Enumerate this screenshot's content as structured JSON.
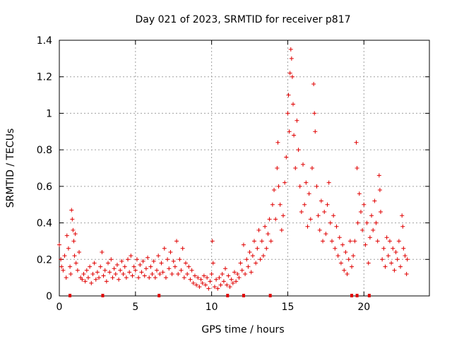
{
  "chart_data": {
    "type": "scatter",
    "title": "Day 021 of 2023, SRMTID for receiver p817",
    "xlabel": "GPS time / hours",
    "ylabel": "SRMTID / TECUs",
    "xlim": [
      0,
      24.3
    ],
    "ylim": [
      0,
      1.4
    ],
    "x_ticks": [
      0,
      5,
      10,
      15,
      20
    ],
    "y_ticks": [
      0,
      0.2,
      0.4,
      0.6,
      0.8,
      1,
      1.2,
      1.4
    ],
    "x_tick_labels": [
      "0",
      "5",
      "10",
      "15",
      "20"
    ],
    "y_tick_labels": [
      "0",
      "0.2",
      "0.4",
      "0.6",
      "0.8",
      "1",
      "1.2",
      "1.4"
    ],
    "grid": true,
    "marker": "+",
    "color": "#e00000",
    "series": [
      {
        "name": "p817",
        "points": [
          [
            0.0,
            0.28
          ],
          [
            0.1,
            0.2
          ],
          [
            0.15,
            0.16
          ],
          [
            0.25,
            0.14
          ],
          [
            0.35,
            0.22
          ],
          [
            0.45,
            0.1
          ],
          [
            0.5,
            0.33
          ],
          [
            0.6,
            0.26
          ],
          [
            0.7,
            0.16
          ],
          [
            0.75,
            0.12
          ],
          [
            0.8,
            0.47
          ],
          [
            0.85,
            0.42
          ],
          [
            0.9,
            0.36
          ],
          [
            0.95,
            0.3
          ],
          [
            1.0,
            0.22
          ],
          [
            1.05,
            0.34
          ],
          [
            1.1,
            0.18
          ],
          [
            1.2,
            0.14
          ],
          [
            1.3,
            0.24
          ],
          [
            1.4,
            0.1
          ],
          [
            1.5,
            0.09
          ],
          [
            1.6,
            0.12
          ],
          [
            1.7,
            0.08
          ],
          [
            1.8,
            0.14
          ],
          [
            1.9,
            0.1
          ],
          [
            2.0,
            0.16
          ],
          [
            2.1,
            0.07
          ],
          [
            2.2,
            0.12
          ],
          [
            2.3,
            0.18
          ],
          [
            2.4,
            0.09
          ],
          [
            2.5,
            0.13
          ],
          [
            2.6,
            0.1
          ],
          [
            2.7,
            0.16
          ],
          [
            2.8,
            0.24
          ],
          [
            2.9,
            0.11
          ],
          [
            3.0,
            0.14
          ],
          [
            3.1,
            0.08
          ],
          [
            3.2,
            0.18
          ],
          [
            3.3,
            0.13
          ],
          [
            3.4,
            0.2
          ],
          [
            3.5,
            0.1
          ],
          [
            3.6,
            0.15
          ],
          [
            3.7,
            0.12
          ],
          [
            3.8,
            0.17
          ],
          [
            3.9,
            0.09
          ],
          [
            4.0,
            0.14
          ],
          [
            4.1,
            0.19
          ],
          [
            4.2,
            0.12
          ],
          [
            4.3,
            0.16
          ],
          [
            4.4,
            0.1
          ],
          [
            4.5,
            0.2
          ],
          [
            4.6,
            0.13
          ],
          [
            4.7,
            0.22
          ],
          [
            4.8,
            0.11
          ],
          [
            4.9,
            0.16
          ],
          [
            5.0,
            0.14
          ],
          [
            5.1,
            0.2
          ],
          [
            5.2,
            0.1
          ],
          [
            5.3,
            0.17
          ],
          [
            5.4,
            0.13
          ],
          [
            5.5,
            0.19
          ],
          [
            5.6,
            0.11
          ],
          [
            5.7,
            0.15
          ],
          [
            5.8,
            0.21
          ],
          [
            5.9,
            0.1
          ],
          [
            6.0,
            0.16
          ],
          [
            6.1,
            0.12
          ],
          [
            6.2,
            0.19
          ],
          [
            6.3,
            0.1
          ],
          [
            6.4,
            0.14
          ],
          [
            6.5,
            0.22
          ],
          [
            6.6,
            0.12
          ],
          [
            6.7,
            0.18
          ],
          [
            6.8,
            0.13
          ],
          [
            6.9,
            0.26
          ],
          [
            7.0,
            0.1
          ],
          [
            7.1,
            0.2
          ],
          [
            7.2,
            0.15
          ],
          [
            7.3,
            0.24
          ],
          [
            7.4,
            0.12
          ],
          [
            7.5,
            0.19
          ],
          [
            7.6,
            0.16
          ],
          [
            7.7,
            0.3
          ],
          [
            7.8,
            0.12
          ],
          [
            7.9,
            0.2
          ],
          [
            8.0,
            0.14
          ],
          [
            8.1,
            0.26
          ],
          [
            8.2,
            0.1
          ],
          [
            8.3,
            0.18
          ],
          [
            8.4,
            0.12
          ],
          [
            8.5,
            0.16
          ],
          [
            8.6,
            0.09
          ],
          [
            8.7,
            0.14
          ],
          [
            8.8,
            0.07
          ],
          [
            8.9,
            0.11
          ],
          [
            9.0,
            0.06
          ],
          [
            9.1,
            0.1
          ],
          [
            9.2,
            0.05
          ],
          [
            9.3,
            0.09
          ],
          [
            9.4,
            0.07
          ],
          [
            9.5,
            0.11
          ],
          [
            9.6,
            0.06
          ],
          [
            9.7,
            0.1
          ],
          [
            9.8,
            0.04
          ],
          [
            9.9,
            0.08
          ],
          [
            10.0,
            0.12
          ],
          [
            10.05,
            0.3
          ],
          [
            10.1,
            0.18
          ],
          [
            10.2,
            0.05
          ],
          [
            10.3,
            0.09
          ],
          [
            10.4,
            0.04
          ],
          [
            10.5,
            0.1
          ],
          [
            10.6,
            0.06
          ],
          [
            10.7,
            0.12
          ],
          [
            10.8,
            0.08
          ],
          [
            10.9,
            0.15
          ],
          [
            11.0,
            0.06
          ],
          [
            11.1,
            0.11
          ],
          [
            11.2,
            0.05
          ],
          [
            11.3,
            0.09
          ],
          [
            11.4,
            0.07
          ],
          [
            11.5,
            0.13
          ],
          [
            11.6,
            0.08
          ],
          [
            11.7,
            0.12
          ],
          [
            11.8,
            0.1
          ],
          [
            11.9,
            0.18
          ],
          [
            12.0,
            0.14
          ],
          [
            12.1,
            0.28
          ],
          [
            12.2,
            0.12
          ],
          [
            12.3,
            0.2
          ],
          [
            12.4,
            0.16
          ],
          [
            12.5,
            0.24
          ],
          [
            12.6,
            0.13
          ],
          [
            12.7,
            0.22
          ],
          [
            12.8,
            0.3
          ],
          [
            12.9,
            0.18
          ],
          [
            13.0,
            0.26
          ],
          [
            13.1,
            0.36
          ],
          [
            13.2,
            0.2
          ],
          [
            13.3,
            0.3
          ],
          [
            13.4,
            0.22
          ],
          [
            13.5,
            0.38
          ],
          [
            13.6,
            0.26
          ],
          [
            13.7,
            0.34
          ],
          [
            13.8,
            0.42
          ],
          [
            13.9,
            0.3
          ],
          [
            14.0,
            0.5
          ],
          [
            14.1,
            0.58
          ],
          [
            14.2,
            0.42
          ],
          [
            14.3,
            0.7
          ],
          [
            14.35,
            0.84
          ],
          [
            14.4,
            0.6
          ],
          [
            14.5,
            0.5
          ],
          [
            14.6,
            0.36
          ],
          [
            14.7,
            0.44
          ],
          [
            14.8,
            0.62
          ],
          [
            14.9,
            0.76
          ],
          [
            15.0,
            1.0
          ],
          [
            15.05,
            1.1
          ],
          [
            15.1,
            0.9
          ],
          [
            15.15,
            1.22
          ],
          [
            15.2,
            1.35
          ],
          [
            15.25,
            1.3
          ],
          [
            15.3,
            1.2
          ],
          [
            15.35,
            1.05
          ],
          [
            15.4,
            0.88
          ],
          [
            15.5,
            0.7
          ],
          [
            15.6,
            0.96
          ],
          [
            15.7,
            0.8
          ],
          [
            15.8,
            0.6
          ],
          [
            15.9,
            0.46
          ],
          [
            16.0,
            0.72
          ],
          [
            16.1,
            0.5
          ],
          [
            16.2,
            0.62
          ],
          [
            16.3,
            0.38
          ],
          [
            16.4,
            0.56
          ],
          [
            16.5,
            0.42
          ],
          [
            16.6,
            0.7
          ],
          [
            16.7,
            1.16
          ],
          [
            16.75,
            1.0
          ],
          [
            16.8,
            0.9
          ],
          [
            16.9,
            0.6
          ],
          [
            17.0,
            0.44
          ],
          [
            17.1,
            0.36
          ],
          [
            17.2,
            0.52
          ],
          [
            17.3,
            0.3
          ],
          [
            17.4,
            0.46
          ],
          [
            17.5,
            0.34
          ],
          [
            17.6,
            0.5
          ],
          [
            17.7,
            0.62
          ],
          [
            17.8,
            0.4
          ],
          [
            17.9,
            0.3
          ],
          [
            18.0,
            0.44
          ],
          [
            18.1,
            0.26
          ],
          [
            18.2,
            0.38
          ],
          [
            18.3,
            0.22
          ],
          [
            18.4,
            0.32
          ],
          [
            18.5,
            0.18
          ],
          [
            18.6,
            0.28
          ],
          [
            18.7,
            0.14
          ],
          [
            18.8,
            0.24
          ],
          [
            18.9,
            0.12
          ],
          [
            19.0,
            0.2
          ],
          [
            19.1,
            0.3
          ],
          [
            19.2,
            0.16
          ],
          [
            19.3,
            0.22
          ],
          [
            19.4,
            0.3
          ],
          [
            19.5,
            0.84
          ],
          [
            19.55,
            0.7
          ],
          [
            19.6,
            0.4
          ],
          [
            19.7,
            0.56
          ],
          [
            19.8,
            0.46
          ],
          [
            19.9,
            0.36
          ],
          [
            20.0,
            0.5
          ],
          [
            20.1,
            0.28
          ],
          [
            20.2,
            0.4
          ],
          [
            20.3,
            0.18
          ],
          [
            20.4,
            0.32
          ],
          [
            20.5,
            0.44
          ],
          [
            20.6,
            0.36
          ],
          [
            20.7,
            0.52
          ],
          [
            20.8,
            0.4
          ],
          [
            20.9,
            0.3
          ],
          [
            21.0,
            0.66
          ],
          [
            21.05,
            0.58
          ],
          [
            21.1,
            0.46
          ],
          [
            21.2,
            0.2
          ],
          [
            21.3,
            0.26
          ],
          [
            21.4,
            0.16
          ],
          [
            21.5,
            0.32
          ],
          [
            21.6,
            0.22
          ],
          [
            21.7,
            0.3
          ],
          [
            21.8,
            0.18
          ],
          [
            21.9,
            0.26
          ],
          [
            22.0,
            0.14
          ],
          [
            22.1,
            0.24
          ],
          [
            22.2,
            0.2
          ],
          [
            22.3,
            0.3
          ],
          [
            22.4,
            0.16
          ],
          [
            22.5,
            0.44
          ],
          [
            22.55,
            0.38
          ],
          [
            22.6,
            0.26
          ],
          [
            22.7,
            0.22
          ],
          [
            22.8,
            0.12
          ],
          [
            22.85,
            0.2
          ]
        ]
      }
    ],
    "axis_markers_x": [
      0.7,
      2.85,
      6.55,
      11.05,
      12.1,
      13.85,
      19.2,
      19.55,
      20.35
    ]
  }
}
